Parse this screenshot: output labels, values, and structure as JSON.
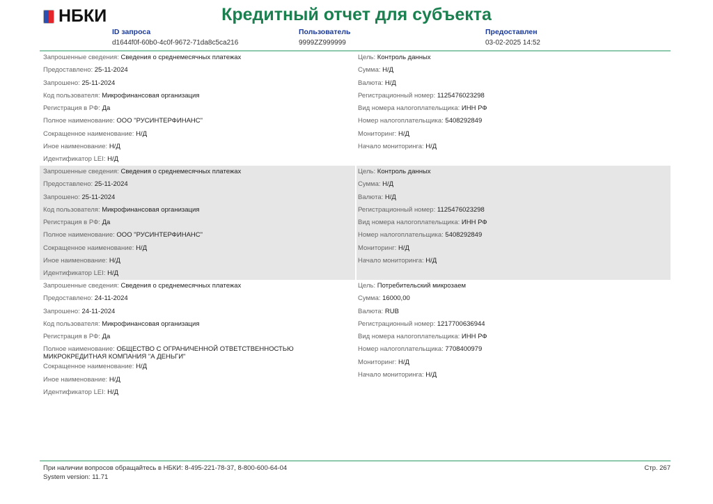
{
  "header": {
    "logo": "НБКИ",
    "title": "Кредитный отчет для субъекта",
    "request_id_label": "ID запроса",
    "request_id": "d1644f0f-60b0-4c0f-9672-71da8c5ca216",
    "user_label": "Пользователь",
    "user": "9999ZZ999999",
    "provided_label": "Предоставлен",
    "provided": "03-02-2025 14:52"
  },
  "colors": {
    "title": "#1a8050",
    "header_label": "#1a3a9a",
    "rule": "#8fc9ad"
  },
  "records": [
    {
      "left": [
        [
          "Запрошенные сведения: ",
          "Сведения о среднемесячных платежах"
        ],
        [
          "Предоставлено: ",
          "25-11-2024"
        ],
        [
          "Запрошено: ",
          "25-11-2024"
        ],
        [
          "Код пользователя: ",
          "Микрофинансовая организация"
        ],
        [
          "Регистрация в РФ: ",
          "Да"
        ],
        [
          "Полное наименование: ",
          "ООО \"РУСИНТЕРФИНАНС\""
        ],
        [
          "Сокращенное наименование: ",
          "Н/Д"
        ],
        [
          "Иное наименование: ",
          "Н/Д"
        ],
        [
          "Идентификатор LEI: ",
          "Н/Д"
        ]
      ],
      "right": [
        [
          "Цель: ",
          "Контроль данных"
        ],
        [
          "Сумма: ",
          "Н/Д"
        ],
        [
          "Валюта: ",
          "Н/Д"
        ],
        [
          "Регистрационный номер: ",
          "1125476023298"
        ],
        [
          "Вид номера налогоплательщика: ",
          "ИНН РФ"
        ],
        [
          "Номер налогоплательщика: ",
          "5408292849"
        ],
        [
          "Мониторинг: ",
          "Н/Д"
        ],
        [
          "Начало мониторинга: ",
          "Н/Д"
        ]
      ]
    },
    {
      "left": [
        [
          "Запрошенные сведения: ",
          "Сведения о среднемесячных платежах"
        ],
        [
          "Предоставлено: ",
          "25-11-2024"
        ],
        [
          "Запрошено: ",
          "25-11-2024"
        ],
        [
          "Код пользователя: ",
          "Микрофинансовая организация"
        ],
        [
          "Регистрация в РФ: ",
          "Да"
        ],
        [
          "Полное наименование: ",
          "ООО \"РУСИНТЕРФИНАНС\""
        ],
        [
          "Сокращенное наименование: ",
          "Н/Д"
        ],
        [
          "Иное наименование: ",
          "Н/Д"
        ],
        [
          "Идентификатор LEI: ",
          "Н/Д"
        ]
      ],
      "right": [
        [
          "Цель: ",
          "Контроль данных"
        ],
        [
          "Сумма: ",
          "Н/Д"
        ],
        [
          "Валюта: ",
          "Н/Д"
        ],
        [
          "Регистрационный номер: ",
          "1125476023298"
        ],
        [
          "Вид номера налогоплательщика: ",
          "ИНН РФ"
        ],
        [
          "Номер налогоплательщика: ",
          "5408292849"
        ],
        [
          "Мониторинг: ",
          "Н/Д"
        ],
        [
          "Начало мониторинга: ",
          "Н/Д"
        ]
      ]
    },
    {
      "left": [
        [
          "Запрошенные сведения: ",
          "Сведения о среднемесячных платежах"
        ],
        [
          "Предоставлено: ",
          "24-11-2024"
        ],
        [
          "Запрошено: ",
          "24-11-2024"
        ],
        [
          "Код пользователя: ",
          "Микрофинансовая организация"
        ],
        [
          "Регистрация в РФ: ",
          "Да"
        ],
        [
          "Полное наименование: ",
          "ОБЩЕСТВО С ОГРАНИЧЕННОЙ ОТВЕТСТВЕННОСТЬЮ МИКРОКРЕДИТНАЯ КОМПАНИЯ \"А ДЕНЬГИ\""
        ],
        [
          "Сокращенное наименование: ",
          "Н/Д"
        ],
        [
          "Иное наименование: ",
          "Н/Д"
        ],
        [
          "Идентификатор LEI: ",
          "Н/Д"
        ]
      ],
      "right": [
        [
          "Цель: ",
          "Потребительский микрозаем"
        ],
        [
          "Сумма: ",
          "16000,00"
        ],
        [
          "Валюта: ",
          "RUB"
        ],
        [
          "Регистрационный номер: ",
          "1217700636944"
        ],
        [
          "Вид номера налогоплательщика: ",
          "ИНН РФ"
        ],
        [
          "Номер налогоплательщика: ",
          "7708400979"
        ],
        [
          "Мониторинг: ",
          "Н/Д"
        ],
        [
          "Начало мониторинга: ",
          "Н/Д"
        ]
      ]
    }
  ],
  "footer": {
    "contact": "При наличии вопросов обращайтесь в НБКИ: 8-495-221-78-37, 8-800-600-64-04",
    "version": "System version: 11.71",
    "page": "Стр. 267"
  }
}
